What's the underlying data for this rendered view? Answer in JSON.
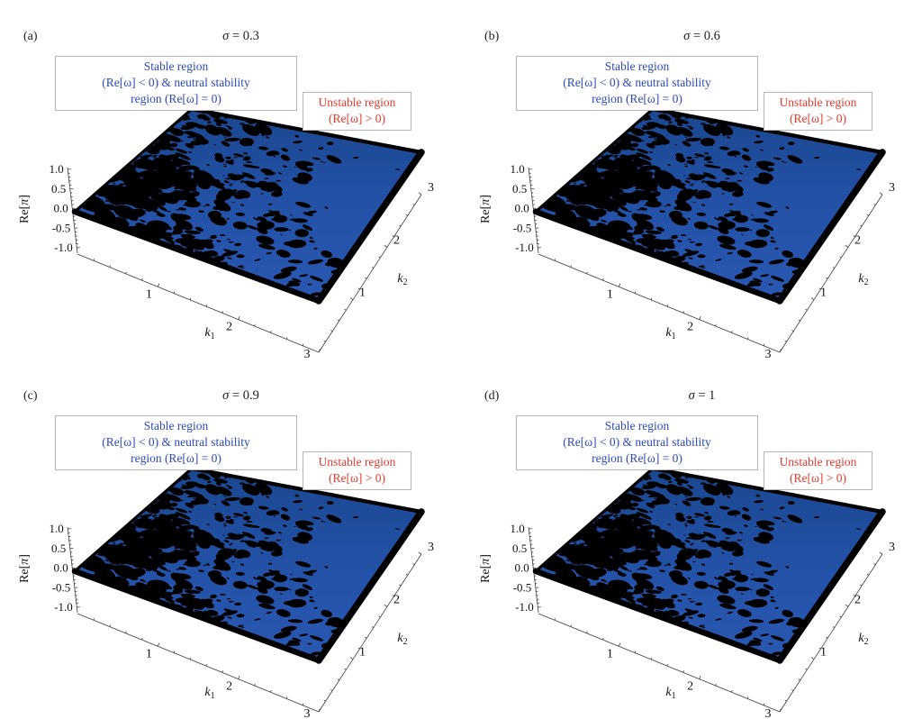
{
  "colors": {
    "background": "#ffffff",
    "surface_blue": "#2452a8",
    "surface_blue_dark": "#1b478f",
    "surface_blue_light": "#2a58b2",
    "unstable_black": "#000000",
    "box_border": "#b5b5b5",
    "stable_text": "#2b49b8",
    "unstable_text": "#e5392a",
    "axis_line": "#3a3a3a",
    "tick_text": "#111111"
  },
  "panels": [
    {
      "label": "(a)",
      "sigma_symbol": "σ",
      "sigma_eq": " = ",
      "sigma_value": "0.3",
      "title": "σ = 0.3"
    },
    {
      "label": "(b)",
      "sigma_symbol": "σ",
      "sigma_eq": " = ",
      "sigma_value": "0.6",
      "title": "σ = 0.6"
    },
    {
      "label": "(c)",
      "sigma_symbol": "σ",
      "sigma_eq": " = ",
      "sigma_value": "0.9",
      "title": "σ = 0.9"
    },
    {
      "label": "(d)",
      "sigma_symbol": "σ",
      "sigma_eq": " = ",
      "sigma_value": "1",
      "title": "σ = 1"
    }
  ],
  "annotations": {
    "stable": {
      "lines": [
        "Stable region",
        "(Re[ω] < 0) & neutral stability",
        "region (Re[ω] = 0)"
      ],
      "text_color": "#2b49b8"
    },
    "unstable": {
      "lines": [
        "Unstable region",
        "(Re[ω] > 0)"
      ],
      "text_color": "#e5392a"
    }
  },
  "axes": {
    "z": {
      "label_prefix": "Re[",
      "label_symbol": "π",
      "label_suffix": "]",
      "ticks": [
        "1.0",
        "0.5",
        "0.0",
        "-0.5",
        "-1.0"
      ]
    },
    "x": {
      "label_base": "k",
      "label_sub": "1",
      "ticks": [
        "1",
        "2",
        "3"
      ]
    },
    "y": {
      "label_base": "k",
      "label_sub": "2",
      "ticks": [
        "1",
        "2",
        "3"
      ]
    }
  },
  "chart_data": [
    {
      "type": "heatmap",
      "render_style": "3D surface plot: flat surface at Re[π] = 0 over the (k1, k2) wavenumber plane",
      "title": "σ = 0.3",
      "xlabel": "k1",
      "ylabel": "k2",
      "zlabel": "Re[π]",
      "xlim": [
        0,
        3
      ],
      "ylim": [
        0,
        3
      ],
      "zlim": [
        -1.0,
        1.0
      ],
      "xticks": [
        1,
        2,
        3
      ],
      "yticks": [
        1,
        2,
        3
      ],
      "zticks": [
        1.0,
        0.5,
        0.0,
        -0.5,
        -1.0
      ],
      "surface_value": "Re[π] = 0 everywhere (flat plane)",
      "grid": false,
      "regions": [
        {
          "label": "Stable region (Re[ω] < 0) & neutral stability region (Re[ω] = 0)",
          "color": "#2452a8",
          "pattern": "solid blue, majority of plane"
        },
        {
          "label": "Unstable region (Re[ω] > 0)",
          "color": "#000000",
          "pattern": "black speckled patches, densest at small k1 and small k2"
        }
      ]
    },
    {
      "type": "heatmap",
      "render_style": "3D surface plot: flat surface at Re[π] = 0 over the (k1, k2) wavenumber plane",
      "title": "σ = 0.6",
      "xlabel": "k1",
      "ylabel": "k2",
      "zlabel": "Re[π]",
      "xlim": [
        0,
        3
      ],
      "ylim": [
        0,
        3
      ],
      "zlim": [
        -1.0,
        1.0
      ],
      "xticks": [
        1,
        2,
        3
      ],
      "yticks": [
        1,
        2,
        3
      ],
      "zticks": [
        1.0,
        0.5,
        0.0,
        -0.5,
        -1.0
      ],
      "surface_value": "Re[π] = 0 everywhere (flat plane)",
      "grid": false,
      "regions": [
        {
          "label": "Stable region (Re[ω] < 0) & neutral stability region (Re[ω] = 0)",
          "color": "#2452a8",
          "pattern": "solid blue, majority of plane"
        },
        {
          "label": "Unstable region (Re[ω] > 0)",
          "color": "#000000",
          "pattern": "black speckled patches, densest at small k1 and small k2"
        }
      ]
    },
    {
      "type": "heatmap",
      "render_style": "3D surface plot: flat surface at Re[π] = 0 over the (k1, k2) wavenumber plane",
      "title": "σ = 0.9",
      "xlabel": "k1",
      "ylabel": "k2",
      "zlabel": "Re[π]",
      "xlim": [
        0,
        3
      ],
      "ylim": [
        0,
        3
      ],
      "zlim": [
        -1.0,
        1.0
      ],
      "xticks": [
        1,
        2,
        3
      ],
      "yticks": [
        1,
        2,
        3
      ],
      "zticks": [
        1.0,
        0.5,
        0.0,
        -0.5,
        -1.0
      ],
      "surface_value": "Re[π] = 0 everywhere (flat plane)",
      "grid": false,
      "regions": [
        {
          "label": "Stable region (Re[ω] < 0) & neutral stability region (Re[ω] = 0)",
          "color": "#2452a8",
          "pattern": "solid blue, majority of plane"
        },
        {
          "label": "Unstable region (Re[ω] > 0)",
          "color": "#000000",
          "pattern": "black speckled patches, densest at small k1 and small k2"
        }
      ]
    },
    {
      "type": "heatmap",
      "render_style": "3D surface plot: flat surface at Re[π] = 0 over the (k1, k2) wavenumber plane",
      "title": "σ = 1",
      "xlabel": "k1",
      "ylabel": "k2",
      "zlabel": "Re[π]",
      "xlim": [
        0,
        3
      ],
      "ylim": [
        0,
        3
      ],
      "zlim": [
        -1.0,
        1.0
      ],
      "xticks": [
        1,
        2,
        3
      ],
      "yticks": [
        1,
        2,
        3
      ],
      "zticks": [
        1.0,
        0.5,
        0.0,
        -0.5,
        -1.0
      ],
      "surface_value": "Re[π] = 0 everywhere (flat plane)",
      "grid": false,
      "regions": [
        {
          "label": "Stable region (Re[ω] < 0) & neutral stability region (Re[ω] = 0)",
          "color": "#2452a8",
          "pattern": "solid blue, majority of plane"
        },
        {
          "label": "Unstable region (Re[ω] > 0)",
          "color": "#000000",
          "pattern": "black speckled patches, densest at small k1 and small k2"
        }
      ]
    }
  ]
}
